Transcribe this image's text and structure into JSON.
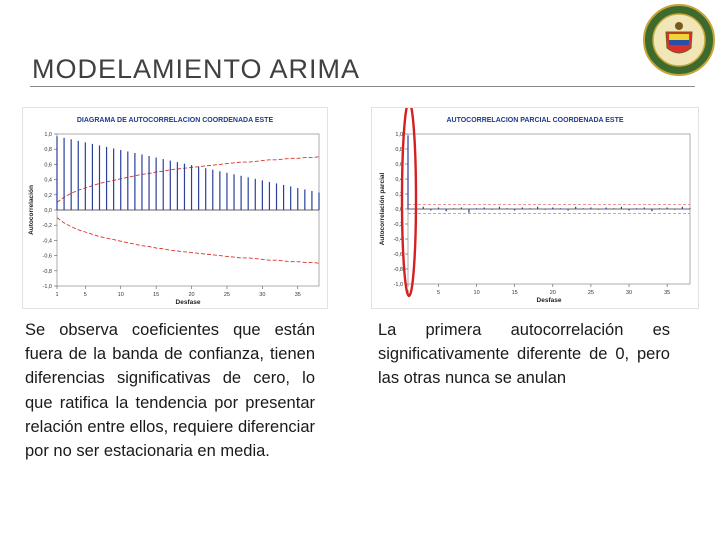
{
  "slide": {
    "title": "MODELAMIENTO ARIMA",
    "left_text": "Se observa coeficientes que están fuera de la banda de confianza, tienen diferencias significativas de cero, lo que ratifica la tendencia por presentar relación entre ellos, requiere diferenciar por no ser estacionaria en media.",
    "right_text": "La primera autocorrelación es significativamente diferente de 0, pero las otras nunca se anulan",
    "logo_text": "ESCUELA POLITÉCNICA DEL EJÉRCITO · ECUADOR"
  },
  "colors": {
    "bar_blue": "#2b3f9e",
    "band_red": "#d9342b",
    "title_blue": "#1f3b8a",
    "highlight_red": "#d42020",
    "plot_bg": "#ffffff"
  },
  "chart_data": [
    {
      "type": "bar",
      "title": "DIAGRAMA DE AUTOCORRELACION COORDENADA ESTE",
      "xlabel": "Desfase",
      "ylabel": "Autocorrelación",
      "xlim": [
        1,
        38
      ],
      "ylim": [
        -1.0,
        1.0
      ],
      "xticks": [
        "1",
        "5",
        "10",
        "15",
        "20",
        "25",
        "30",
        "35"
      ],
      "yticks": [
        "1,0",
        "0,8",
        "0,6",
        "0,4",
        "0,2",
        "0,0",
        "-0,2",
        "-0,4",
        "-0,6",
        "-0,8",
        "-1,0"
      ],
      "x": [
        1,
        2,
        3,
        4,
        5,
        6,
        7,
        8,
        9,
        10,
        11,
        12,
        13,
        14,
        15,
        16,
        17,
        18,
        19,
        20,
        21,
        22,
        23,
        24,
        25,
        26,
        27,
        28,
        29,
        30,
        31,
        32,
        33,
        34,
        35,
        36,
        37,
        38
      ],
      "values": [
        0.97,
        0.95,
        0.93,
        0.91,
        0.89,
        0.87,
        0.85,
        0.83,
        0.81,
        0.79,
        0.77,
        0.75,
        0.73,
        0.71,
        0.69,
        0.67,
        0.65,
        0.63,
        0.61,
        0.59,
        0.57,
        0.55,
        0.53,
        0.51,
        0.49,
        0.47,
        0.45,
        0.43,
        0.41,
        0.39,
        0.37,
        0.35,
        0.33,
        0.31,
        0.29,
        0.27,
        0.25,
        0.23
      ],
      "confidence_band": [
        0.1,
        0.17,
        0.22,
        0.26,
        0.29,
        0.32,
        0.35,
        0.37,
        0.39,
        0.41,
        0.43,
        0.45,
        0.47,
        0.48,
        0.5,
        0.51,
        0.53,
        0.54,
        0.55,
        0.56,
        0.57,
        0.58,
        0.59,
        0.6,
        0.61,
        0.62,
        0.63,
        0.63,
        0.64,
        0.65,
        0.66,
        0.66,
        0.67,
        0.68,
        0.68,
        0.69,
        0.69,
        0.7
      ],
      "grid": false
    },
    {
      "type": "bar",
      "title": "AUTOCORRELACION PARCIAL COORDENADA ESTE",
      "xlabel": "Desfase",
      "ylabel": "Autocorrelación parcial",
      "xlim": [
        1,
        38
      ],
      "ylim": [
        -1.0,
        1.0
      ],
      "xticks": [
        "1",
        "5",
        "10",
        "15",
        "20",
        "25",
        "30",
        "35"
      ],
      "yticks": [
        "1,0",
        "0,8",
        "0,6",
        "0,4",
        "0,2",
        "0,0",
        "-0,2",
        "-0,4",
        "-0,6",
        "-0,8",
        "-1,0"
      ],
      "x": [
        1,
        2,
        3,
        4,
        5,
        6,
        7,
        8,
        9,
        10,
        11,
        12,
        13,
        14,
        15,
        16,
        17,
        18,
        19,
        20,
        21,
        22,
        23,
        24,
        25,
        26,
        27,
        28,
        29,
        30,
        31,
        32,
        33,
        34,
        35,
        36,
        37,
        38
      ],
      "values": [
        0.98,
        0.01,
        0.03,
        -0.02,
        0.02,
        -0.03,
        0.01,
        0.02,
        -0.05,
        0.01,
        0.02,
        -0.01,
        0.03,
        0.01,
        -0.02,
        0.02,
        0.01,
        0.03,
        -0.01,
        0.02,
        0.01,
        -0.02,
        0.03,
        0.01,
        0.02,
        -0.01,
        0.02,
        0.01,
        0.03,
        -0.02,
        0.01,
        0.02,
        -0.03,
        0.01,
        0.02,
        -0.01,
        0.03,
        0.01
      ],
      "confidence_band": [
        0.06
      ],
      "annotation": "first lag circled",
      "grid": false
    }
  ]
}
